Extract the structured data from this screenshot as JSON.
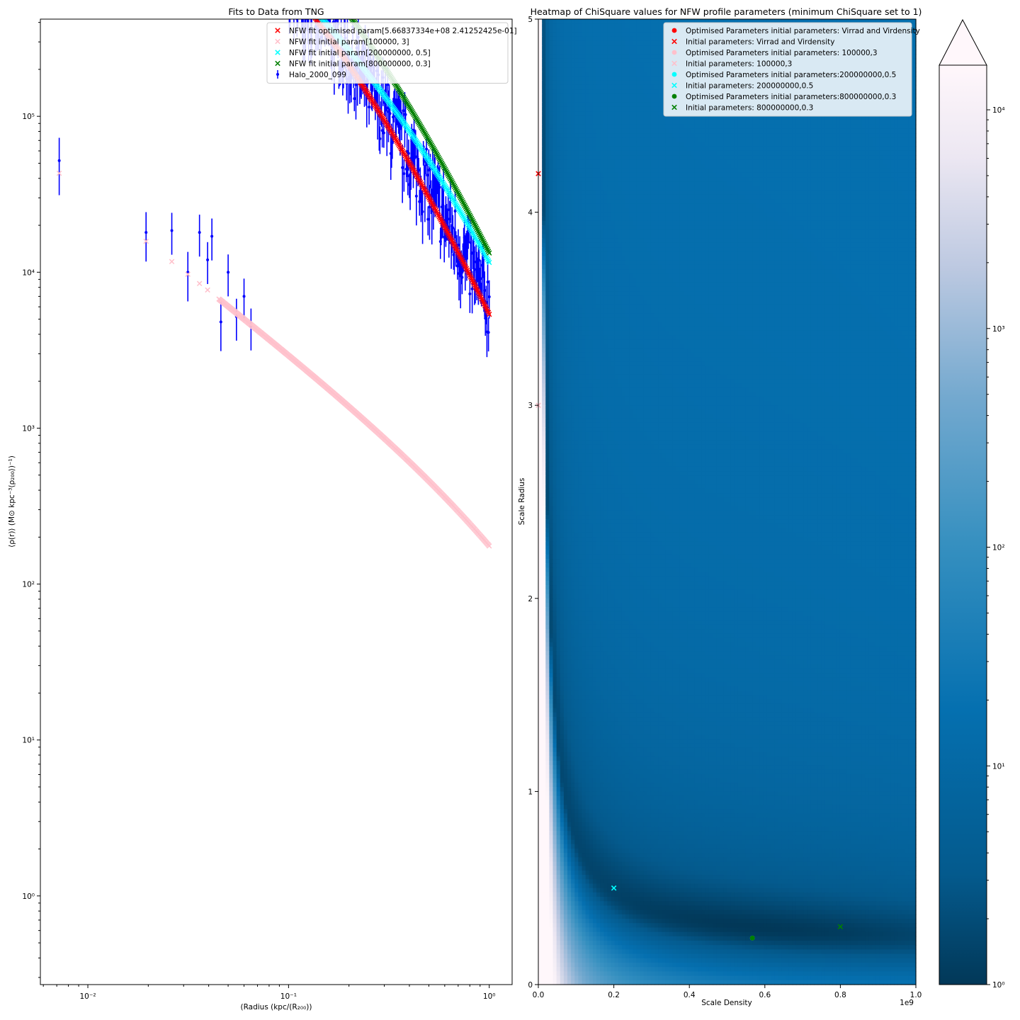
{
  "figure": {
    "colors": {
      "red": "#ff0000",
      "pink": "#ffc0cb",
      "cyan": "#00ffff",
      "green": "#008000",
      "blue": "#0000ff",
      "map_dark": "#023858",
      "map_mid": "#3690c0",
      "map_light": "#fff7fb"
    }
  },
  "chart_data": [
    {
      "type": "scatter",
      "title": "Fits to Data from TNG",
      "xlabel": "(Radius (kpc/(R₂₀₀))",
      "ylabel": "⟨ρ(r)⟩ (M⊙ kpc⁻³⟨ρ₂₀₀⟩)⁻¹)",
      "xscale": "log",
      "yscale": "log",
      "xlim": [
        0.0058,
        1.3
      ],
      "ylim": [
        0.27,
        420000
      ],
      "x_ticks": [
        {
          "value": 0.01,
          "label": "10⁻²"
        },
        {
          "value": 0.1,
          "label": "10⁻¹"
        },
        {
          "value": 1,
          "label": "10⁰"
        }
      ],
      "y_ticks": [
        {
          "value": 1,
          "label": "10⁰"
        },
        {
          "value": 10,
          "label": "10¹"
        },
        {
          "value": 100,
          "label": "10²"
        },
        {
          "value": 1000,
          "label": "10³"
        },
        {
          "value": 10000,
          "label": "10⁴"
        },
        {
          "value": 100000,
          "label": "10⁵"
        }
      ],
      "legend_position": "top-right",
      "legend": [
        {
          "label": "NFW fit optimised param[5.66837334e+08 2.41252425e-01]",
          "color": "#ff0000",
          "marker": "x"
        },
        {
          "label": "NFW fit initial param[100000, 3]",
          "color": "#ffc0cb",
          "marker": "x"
        },
        {
          "label": "NFW fit initial param[200000000, 0.5]",
          "color": "#00ffff",
          "marker": "x"
        },
        {
          "label": "NFW fit initial param[800000000, 0.3]",
          "color": "#008000",
          "marker": "x"
        },
        {
          "label": "Halo_2000_099",
          "color": "#0000ff",
          "marker": "errorbar"
        }
      ],
      "series_model": {
        "description": "NFW profile rho(x) = rho_s / ((x/r_s)(1+x/r_s)^2); x = radius",
        "x_first_points": [
          0.0072,
          0.0195,
          0.0262,
          0.0315,
          0.036,
          0.0395
        ],
        "x_dense_range": [
          0.045,
          1.0
        ],
        "x_dense_count": 320,
        "fits": [
          {
            "label": "NFW fit optimised param[5.66837334e+08 2.41252425e-01]",
            "color": "#ff0000",
            "rho_s": 566837334,
            "r_s": 0.241252425,
            "scale": 0.00104
          },
          {
            "label": "NFW fit initial param[100000, 3]",
            "color": "#ffc0cb",
            "rho_s": 100000,
            "r_s": 3,
            "scale": 0.00104
          },
          {
            "label": "NFW fit initial param[200000000, 0.5]",
            "color": "#00ffff",
            "rho_s": 200000000,
            "r_s": 0.5,
            "scale": 0.00104
          },
          {
            "label": "NFW fit initial param[800000000, 0.3]",
            "color": "#008000",
            "rho_s": 800000000,
            "r_s": 0.3,
            "scale": 0.00104
          }
        ]
      },
      "halo_data": {
        "label": "Halo_2000_099",
        "points": [
          [
            0.0072,
            52000,
            0.4
          ],
          [
            0.0195,
            18000,
            0.35
          ],
          [
            0.0262,
            18500,
            0.3
          ],
          [
            0.0315,
            10000,
            0.35
          ],
          [
            0.036,
            18000,
            0.3
          ],
          [
            0.0395,
            12000,
            0.3
          ],
          [
            0.0415,
            17000,
            0.3
          ],
          [
            0.046,
            4800,
            0.35
          ],
          [
            0.05,
            10000,
            0.3
          ],
          [
            0.055,
            5200,
            0.3
          ],
          [
            0.06,
            7000,
            0.3
          ],
          [
            0.065,
            4500,
            0.3
          ]
        ],
        "dense_x_range": [
          0.07,
          1.0
        ],
        "dense_count": 300,
        "dense_scale_vs_red": 1.15,
        "dense_rel_err": 0.28
      }
    },
    {
      "type": "heatmap",
      "title": "Heatmap of ChiSquare values for NFW profile parameters (minimum ChiSquare set to 1)",
      "xlabel": "Scale Density",
      "ylabel": "Scale Radius",
      "x_offset_label": "1e9",
      "xlim": [
        0,
        1.0
      ],
      "ylim": [
        0,
        5
      ],
      "x_ticks": [
        {
          "value": 0.0,
          "label": "0.0"
        },
        {
          "value": 0.2,
          "label": "0.2"
        },
        {
          "value": 0.4,
          "label": "0.4"
        },
        {
          "value": 0.6,
          "label": "0.6"
        },
        {
          "value": 0.8,
          "label": "0.8"
        },
        {
          "value": 1.0,
          "label": "1.0"
        }
      ],
      "y_ticks": [
        {
          "value": 0,
          "label": "0"
        },
        {
          "value": 1,
          "label": "1"
        },
        {
          "value": 2,
          "label": "2"
        },
        {
          "value": 3,
          "label": "3"
        },
        {
          "value": 4,
          "label": "4"
        },
        {
          "value": 5,
          "label": "5"
        }
      ],
      "colorbar": {
        "scale": "log",
        "range": [
          1,
          16000
        ],
        "extend": "max",
        "ticks": [
          {
            "value": 1,
            "label": "10⁰"
          },
          {
            "value": 10,
            "label": "10¹"
          },
          {
            "value": 100,
            "label": "10²"
          },
          {
            "value": 1000,
            "label": "10³"
          },
          {
            "value": 10000,
            "label": "10⁴"
          }
        ]
      },
      "legend_position": "top-right",
      "legend": [
        {
          "label": "Optimised Parameters initial parameters: Virrad and Virdensity",
          "color": "#ff0000",
          "marker": "o"
        },
        {
          "label": "Initial parameters: Virrad and Virdensity",
          "color": "#ff0000",
          "marker": "x"
        },
        {
          "label": "Optimised Parameters initial parameters: 100000,3",
          "color": "#ffc0cb",
          "marker": "o"
        },
        {
          "label": "Initial parameters: 100000,3",
          "color": "#ffc0cb",
          "marker": "x"
        },
        {
          "label": "Optimised Parameters initial parameters:200000000,0.5",
          "color": "#00ffff",
          "marker": "o"
        },
        {
          "label": "Initial parameters: 200000000,0.5",
          "color": "#00ffff",
          "marker": "x"
        },
        {
          "label": "Optimised Parameters initial parameters:800000000,0.3",
          "color": "#008000",
          "marker": "o"
        },
        {
          "label": "Initial parameters: 800000000,0.3",
          "color": "#008000",
          "marker": "x"
        }
      ],
      "points": [
        {
          "x": 0.0,
          "y": 4.2,
          "color": "#ff0000",
          "marker": "x"
        },
        {
          "x": 0.0,
          "y": 3.0,
          "color": "#ffc0cb",
          "marker": "x"
        },
        {
          "x": 0.2,
          "y": 0.5,
          "color": "#00ffff",
          "marker": "x"
        },
        {
          "x": 0.8,
          "y": 0.3,
          "color": "#008000",
          "marker": "x"
        },
        {
          "x": 0.567,
          "y": 0.241,
          "color": "#ff0000",
          "marker": "o"
        },
        {
          "x": 0.567,
          "y": 0.241,
          "color": "#00ffff",
          "marker": "o"
        },
        {
          "x": 0.567,
          "y": 0.241,
          "color": "#008000",
          "marker": "o"
        }
      ]
    }
  ]
}
